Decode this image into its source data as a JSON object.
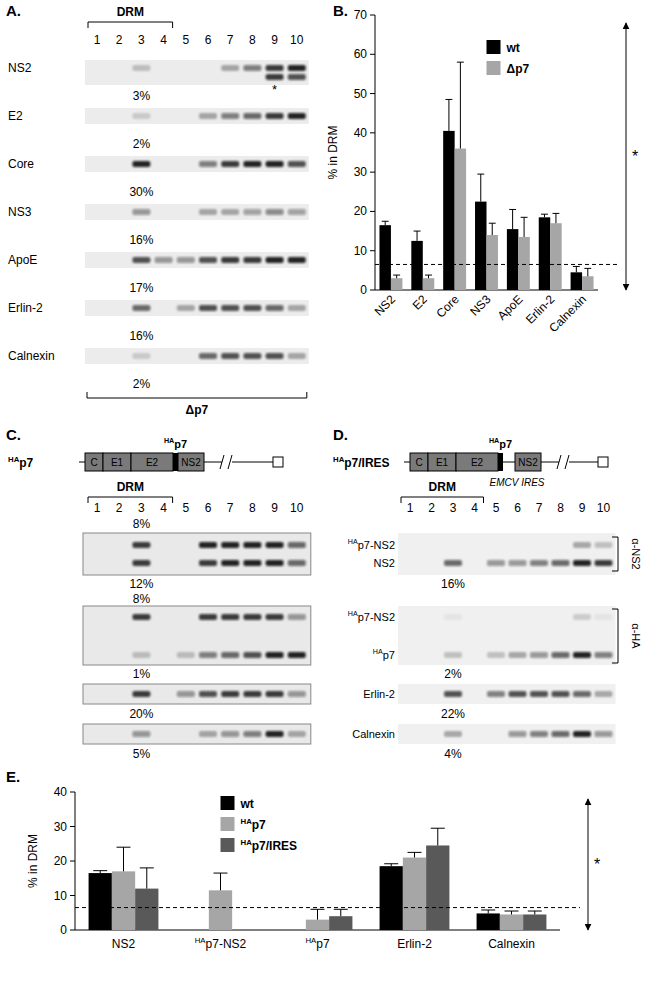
{
  "panels": {
    "A": {
      "label": "A.",
      "drm": "DRM",
      "lanes": [
        1,
        2,
        3,
        4,
        5,
        6,
        7,
        8,
        9,
        10
      ],
      "rows": [
        {
          "name": "NS2",
          "bands": [
            [
              0,
              0,
              0.2,
              0,
              0,
              0,
              0.3,
              0.5,
              0.8,
              0.9
            ],
            [
              0,
              0,
              0,
              0,
              0,
              0,
              0,
              0,
              0.8,
              0.7
            ]
          ],
          "annotation": "*",
          "percent": "3%"
        },
        {
          "name": "E2",
          "bands": [
            [
              0,
              0,
              0.15,
              0,
              0,
              0.3,
              0.5,
              0.6,
              0.8,
              0.9
            ]
          ],
          "percent": "2%"
        },
        {
          "name": "Core",
          "bands": [
            [
              0,
              0,
              0.9,
              0,
              0,
              0.5,
              0.8,
              0.9,
              0.9,
              0.7
            ]
          ],
          "percent": "30%"
        },
        {
          "name": "NS3",
          "bands": [
            [
              0,
              0,
              0.4,
              0,
              0,
              0.3,
              0.3,
              0.35,
              0.45,
              0.35
            ]
          ],
          "percent": "16%"
        },
        {
          "name": "ApoE",
          "bands": [
            [
              0,
              0,
              0.7,
              0.4,
              0.4,
              0.7,
              0.8,
              0.8,
              0.9,
              0.9
            ]
          ],
          "percent": "17%"
        },
        {
          "name": "Erlin-2",
          "bands": [
            [
              0,
              0,
              0.6,
              0,
              0.3,
              0.7,
              0.7,
              0.7,
              0.6,
              0.3
            ]
          ],
          "percent": "16%"
        },
        {
          "name": "Calnexin",
          "bands": [
            [
              0,
              0,
              0.15,
              0,
              0,
              0.6,
              0.7,
              0.7,
              0.7,
              0.3
            ]
          ],
          "percent": "2%"
        }
      ],
      "footer": "Δp7"
    },
    "C": {
      "label": "C.",
      "construct": {
        "name": "HAp7",
        "segments": [
          "C",
          "E1",
          "E2",
          "NS2"
        ],
        "tag": "HAp7"
      },
      "drm": "DRM",
      "lanes": [
        1,
        2,
        3,
        4,
        5,
        6,
        7,
        8,
        9,
        10
      ],
      "rows": [
        {
          "percent_above": "8%",
          "bands": [
            [
              0,
              0,
              0.8,
              0,
              0,
              0.9,
              0.9,
              0.9,
              0.9,
              0.6
            ],
            [
              0,
              0,
              0.8,
              0,
              0,
              0.8,
              0.9,
              0.9,
              0.9,
              0.6
            ]
          ],
          "percent": "12%"
        },
        {
          "percent_above": "8%",
          "bands": [
            [
              0,
              0,
              0.8,
              0,
              0,
              0.8,
              0.8,
              0.8,
              0.8,
              0.4
            ],
            [
              0,
              0,
              0.2,
              0,
              0.2,
              0.5,
              0.6,
              0.7,
              0.9,
              0.9
            ]
          ],
          "percent": "1%"
        },
        {
          "bands": [
            [
              0,
              0,
              0.8,
              0,
              0.4,
              0.7,
              0.8,
              0.8,
              0.8,
              0.4
            ]
          ],
          "percent": "20%"
        },
        {
          "bands": [
            [
              0,
              0,
              0.4,
              0,
              0,
              0.3,
              0.4,
              0.5,
              0.9,
              0.3
            ]
          ],
          "percent": "5%"
        }
      ]
    },
    "D": {
      "label": "D.",
      "construct": {
        "name": "HAp7/IRES",
        "segments": [
          "C",
          "E1",
          "E2",
          "NS2"
        ],
        "tag": "HAp7",
        "ires": "EMCV IRES"
      },
      "drm": "DRM",
      "lanes": [
        1,
        2,
        3,
        4,
        5,
        6,
        7,
        8,
        9,
        10
      ],
      "rows": [
        {
          "names": [
            "HAp7-NS2",
            "NS2"
          ],
          "antibody": "α-NS2",
          "bands": [
            [
              0,
              0,
              0,
              0,
              0,
              0,
              0,
              0,
              0.3,
              0.2
            ],
            [
              0,
              0,
              0.6,
              0,
              0.4,
              0.4,
              0.5,
              0.6,
              0.9,
              0.8
            ]
          ],
          "percent": "16%"
        },
        {
          "names": [
            "HAp7-NS2",
            "HAp7"
          ],
          "antibody": "α-HA",
          "bands": [
            [
              0,
              0,
              0.05,
              0,
              0,
              0,
              0,
              0,
              0.15,
              0.05
            ],
            [
              0,
              0,
              0.2,
              0,
              0.2,
              0.3,
              0.4,
              0.6,
              0.9,
              0.5
            ]
          ],
          "percent": "2%"
        },
        {
          "names": [
            "Erlin-2"
          ],
          "bands": [
            [
              0,
              0,
              0.7,
              0,
              0.5,
              0.7,
              0.7,
              0.7,
              0.6,
              0.3
            ]
          ],
          "percent": "22%"
        },
        {
          "names": [
            "Calnexin"
          ],
          "bands": [
            [
              0,
              0,
              0.3,
              0,
              0,
              0.4,
              0.5,
              0.6,
              0.9,
              0.4
            ]
          ],
          "percent": "4%"
        }
      ]
    }
  },
  "chart_data": [
    {
      "type": "bar",
      "panel_label": "B.",
      "y_label": "% in DRM",
      "categories": [
        "NS2",
        "E2",
        "Core",
        "NS3",
        "ApoE",
        "Erlin-2",
        "Calnexin"
      ],
      "series": [
        {
          "name": "wt",
          "color": "#000000",
          "values": [
            16.5,
            12.5,
            40.5,
            22.5,
            15.5,
            18.5,
            4.5
          ],
          "errors": [
            1,
            2.5,
            8,
            7,
            5,
            0.8,
            1.5
          ]
        },
        {
          "name": "Δp7",
          "color": "#a6a6a6",
          "values": [
            3,
            3,
            36,
            14,
            13.5,
            17,
            3.5
          ],
          "errors": [
            0.8,
            0.8,
            22,
            3,
            5,
            2.5,
            2
          ]
        }
      ],
      "ylim": [
        0,
        70
      ],
      "yticks": [
        0,
        10,
        20,
        30,
        40,
        50,
        60,
        70
      ],
      "legend": "top-right",
      "reference_line": 6.5,
      "annotation": {
        "text": "*",
        "from": 0,
        "to": 68
      }
    },
    {
      "type": "bar",
      "panel_label": "E.",
      "y_label": "% in DRM",
      "categories": [
        "NS2",
        "HAp7-NS2",
        "HAp7",
        "Erlin-2",
        "Calnexin"
      ],
      "series": [
        {
          "name": "wt",
          "color": "#000000",
          "values": [
            16.5,
            null,
            null,
            18.5,
            4.8
          ],
          "errors": [
            0.7,
            null,
            null,
            0.7,
            1
          ]
        },
        {
          "name": "HAp7",
          "color": "#a6a6a6",
          "values": [
            17,
            11.5,
            3,
            21,
            4.5
          ],
          "errors": [
            7,
            5,
            3,
            1.5,
            1
          ]
        },
        {
          "name": "HAp7/IRES",
          "color": "#595959",
          "values": [
            12,
            null,
            4,
            24.5,
            4.5
          ],
          "errors": [
            6,
            null,
            2,
            5,
            1
          ]
        }
      ],
      "ylim": [
        0,
        40
      ],
      "yticks": [
        0,
        10,
        20,
        30,
        40
      ],
      "legend": "top-left",
      "reference_line": 6.5,
      "annotation": {
        "text": "*",
        "from": 0,
        "to": 38
      }
    }
  ]
}
